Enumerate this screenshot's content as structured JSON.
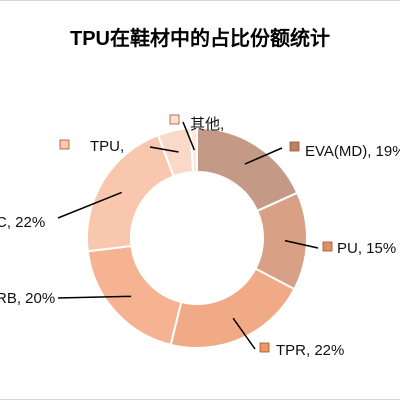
{
  "chart_data": {
    "type": "pie",
    "style": "donut",
    "title": "TPU在鞋材中的占比份额统计",
    "slices": [
      {
        "label": "EVA(MD), 19%",
        "value": 19,
        "color": "#c49a86",
        "marker": "#b98266"
      },
      {
        "label": "PU, 15%",
        "value": 15,
        "color": "#d8a085",
        "marker": "#df8e68"
      },
      {
        "label": "TPR, 22%",
        "value": 22,
        "color": "#f0aa86",
        "marker": "#ee9866"
      },
      {
        "label": "RB, 20%",
        "value": 20,
        "color": "#f5b392",
        "marker": "#f3a17a"
      },
      {
        "label": "C, 22%",
        "value": 22,
        "color": "#f8c7ad",
        "marker": "#f5b395"
      },
      {
        "label": "TPU,",
        "value": 5,
        "color": "#fbd9c8",
        "marker": "#fac9b0"
      },
      {
        "label": "其他,",
        "value": 1,
        "color": "#fde9df",
        "marker": "#fde1d3"
      }
    ],
    "legend": "none"
  }
}
